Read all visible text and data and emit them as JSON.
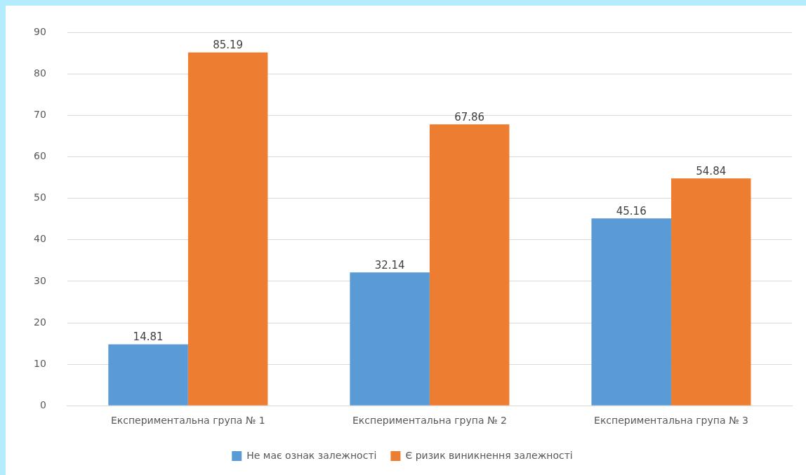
{
  "chart_data": {
    "type": "bar",
    "categories": [
      "Експериментальна група № 1",
      "Експериментальна група № 2",
      "Експериментальна група № 3"
    ],
    "series": [
      {
        "name": "Не має ознак залежності",
        "color": "#5b9bd5",
        "values": [
          14.81,
          32.14,
          45.16
        ]
      },
      {
        "name": "Є ризик виникнення залежності",
        "color": "#ed7d31",
        "values": [
          85.19,
          67.86,
          54.84
        ]
      }
    ],
    "ylim": [
      0,
      90
    ],
    "yticks": [
      0,
      10,
      20,
      30,
      40,
      50,
      60,
      70,
      80,
      90
    ],
    "grid": "y",
    "legend": "bottom",
    "data_labels": true
  }
}
